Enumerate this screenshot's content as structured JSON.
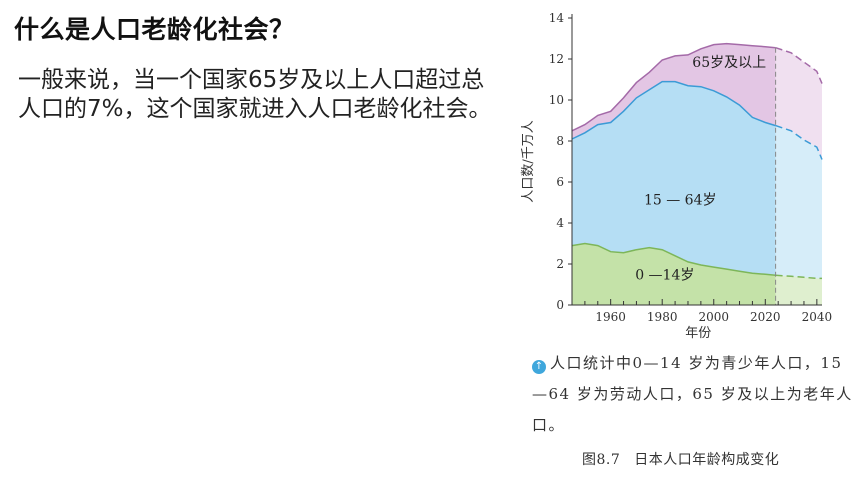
{
  "slide": {
    "title": "什么是人口老龄化社会？",
    "body": "一般来说，当一个国家65岁及以上人口超过总人口的7%，这个国家就进入人口老龄化社会。"
  },
  "figure": {
    "caption": "人口统计中0—14 岁为青少年人口，15—64 岁为劳动人口，65 岁及以上为老年人口。",
    "number": "图8.7",
    "title": "日本人口年龄构成变化",
    "colors": {
      "age_0_14": "#c4e2a8",
      "age_15_64": "#b5def4",
      "age_65_plus": "#e3c6e4",
      "projection_divider": "#888888"
    }
  },
  "chart_data": {
    "type": "area",
    "stacked": true,
    "title": "",
    "xlabel": "年份",
    "ylabel": "人口数/千万人",
    "xlim": [
      1945,
      2042
    ],
    "ylim": [
      0,
      14
    ],
    "xticks": [
      1960,
      1980,
      2000,
      2020,
      2040
    ],
    "yticks": [
      0,
      2,
      4,
      6,
      8,
      10,
      12,
      14
    ],
    "projection_start": 2024,
    "x": [
      1945,
      1950,
      1955,
      1960,
      1965,
      1970,
      1975,
      1980,
      1985,
      1990,
      1995,
      2000,
      2005,
      2010,
      2015,
      2020,
      2024,
      2030,
      2035,
      2040,
      2042
    ],
    "series": [
      {
        "name": "0 —14岁",
        "values": [
          2.9,
          3.0,
          2.9,
          2.6,
          2.55,
          2.7,
          2.8,
          2.7,
          2.4,
          2.1,
          1.95,
          1.85,
          1.75,
          1.65,
          1.55,
          1.5,
          1.45,
          1.4,
          1.35,
          1.3,
          1.3
        ]
      },
      {
        "name": "15 — 64岁",
        "values": [
          5.2,
          5.4,
          5.9,
          6.3,
          6.9,
          7.4,
          7.7,
          8.2,
          8.5,
          8.6,
          8.7,
          8.6,
          8.4,
          8.1,
          7.6,
          7.4,
          7.3,
          7.1,
          6.7,
          6.4,
          5.8
        ]
      },
      {
        "name": "65岁及以上",
        "values": [
          0.4,
          0.4,
          0.45,
          0.55,
          0.65,
          0.75,
          0.85,
          1.05,
          1.25,
          1.5,
          1.85,
          2.25,
          2.6,
          2.95,
          3.5,
          3.7,
          3.8,
          3.8,
          3.8,
          3.7,
          3.7
        ]
      }
    ],
    "annotations": [
      "65岁及以上",
      "15 — 64岁",
      "0 —14岁"
    ]
  }
}
